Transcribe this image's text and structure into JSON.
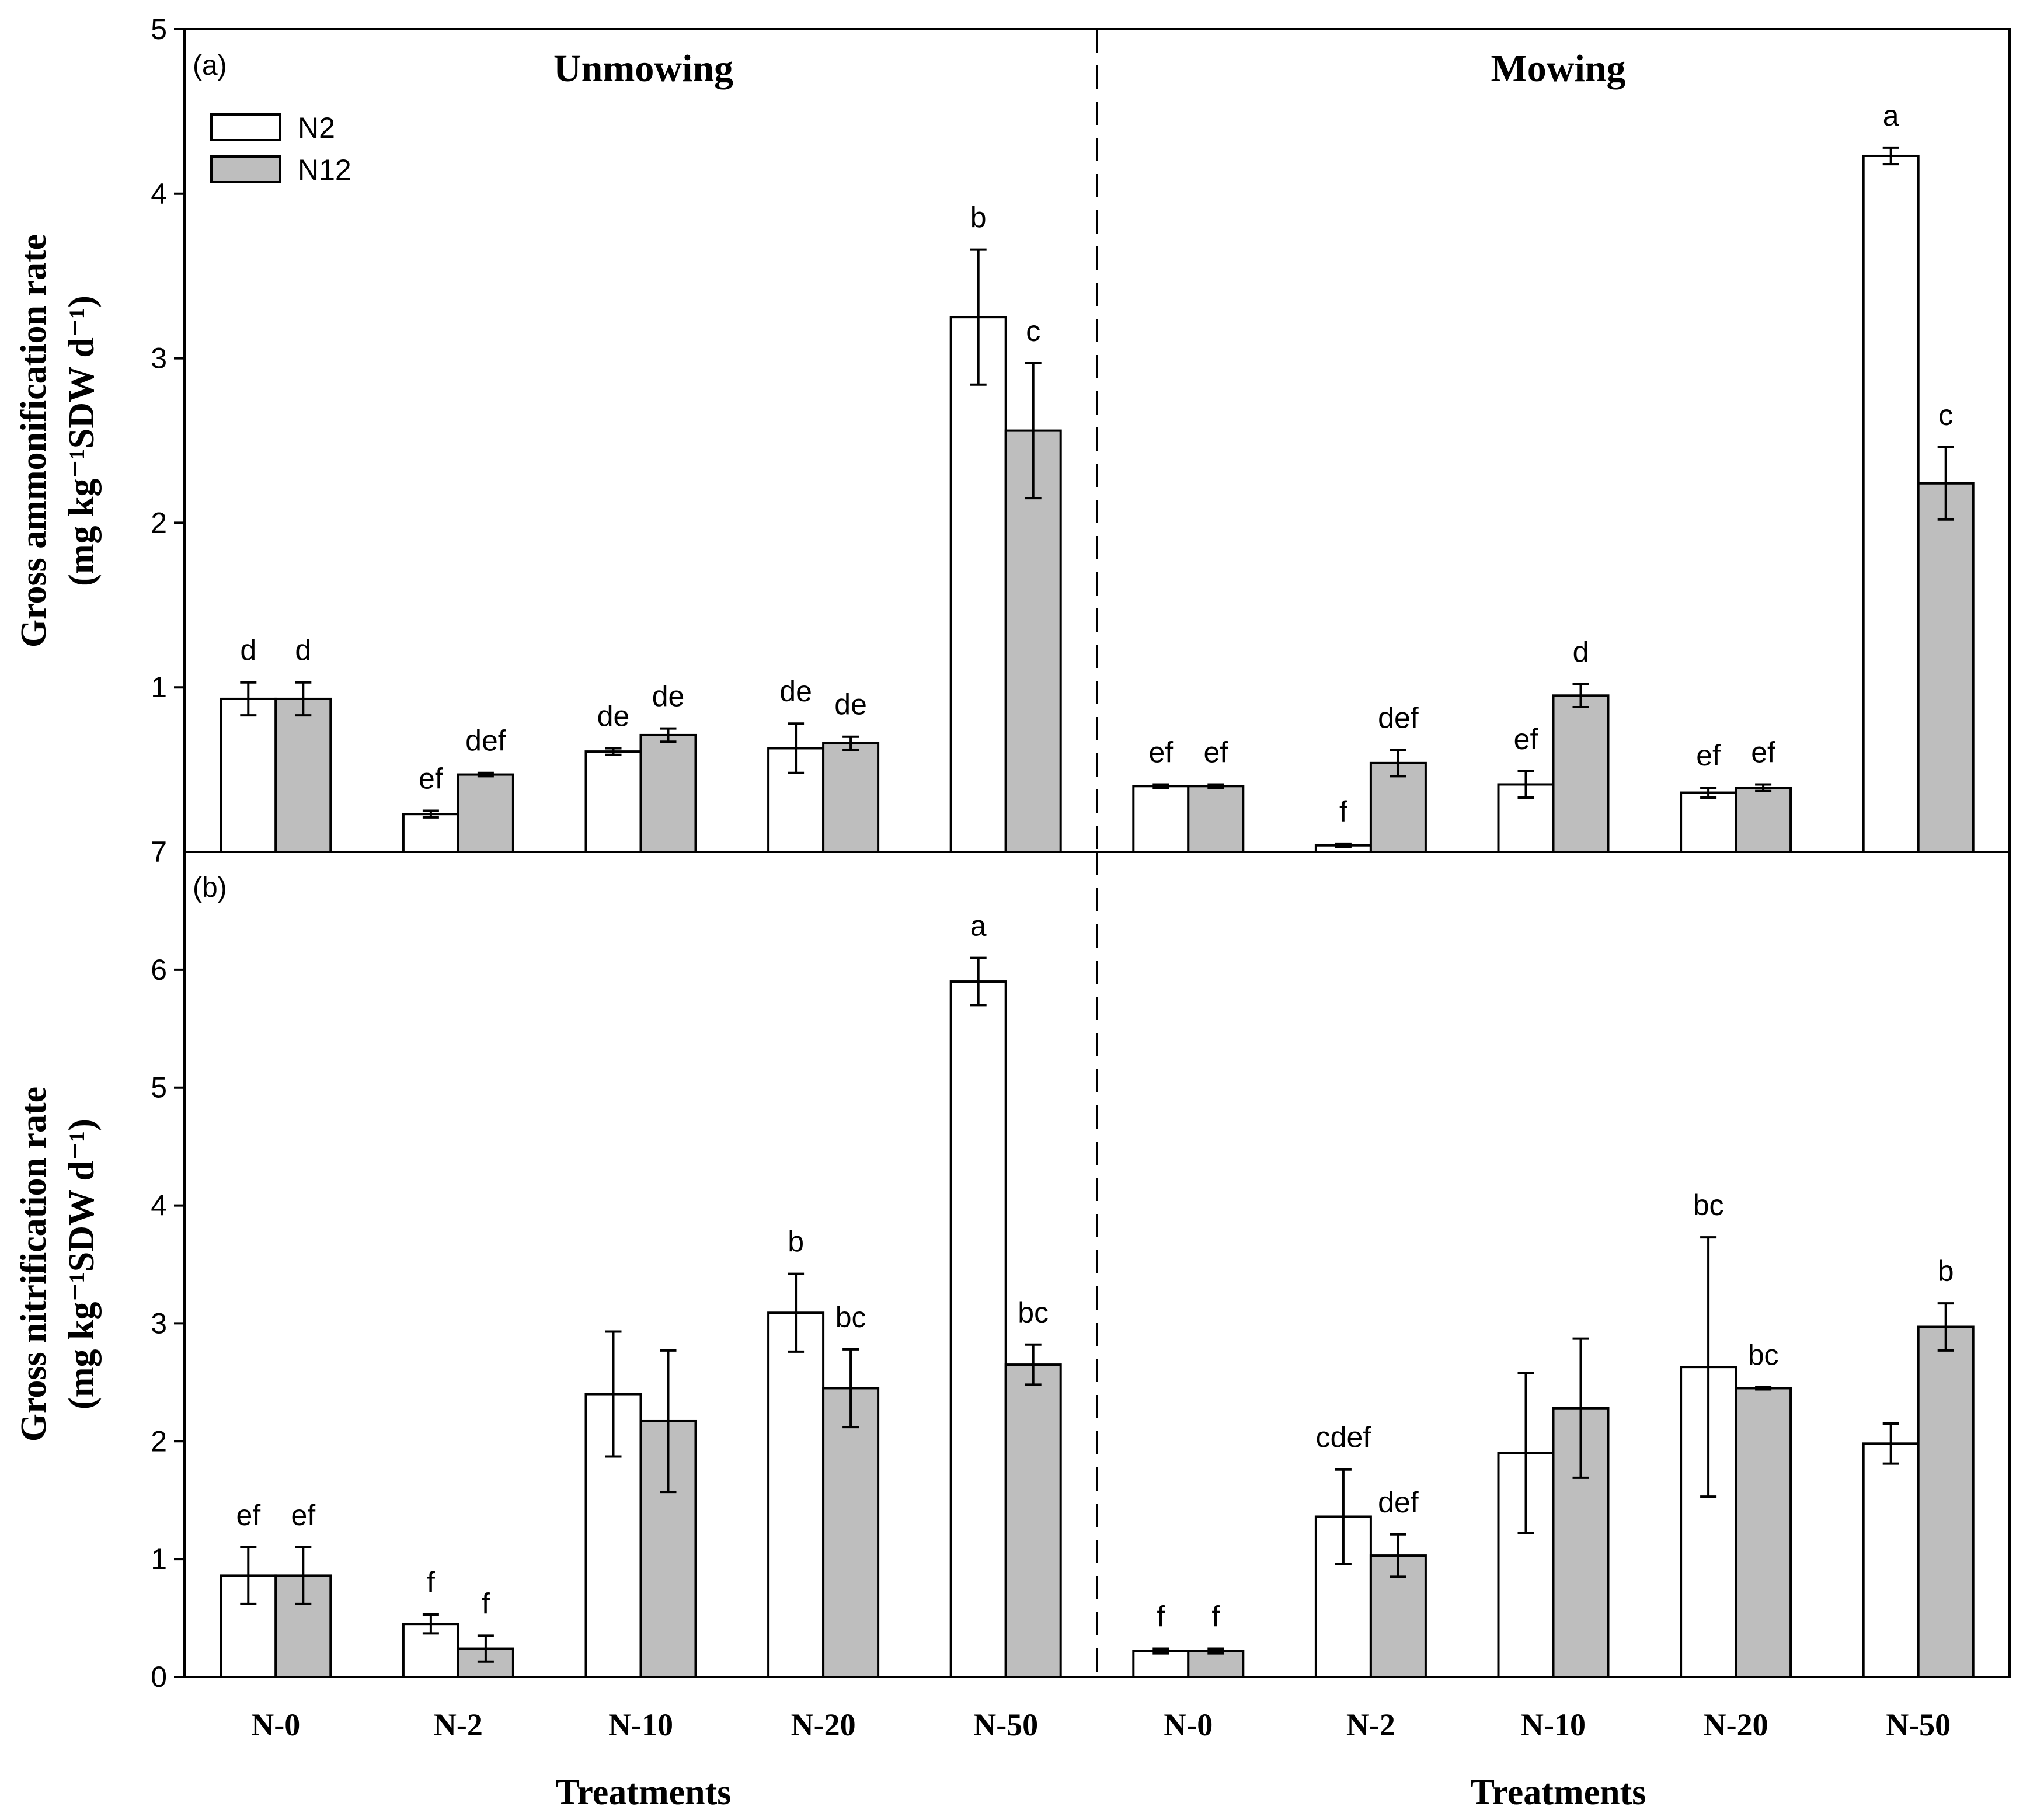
{
  "chart_data": {
    "type": "bar",
    "legend": {
      "position": "top-left",
      "entries": [
        {
          "name": "N2",
          "color": "#ffffff"
        },
        {
          "name": "N12",
          "color": "#bebebe"
        }
      ]
    },
    "groups": [
      "Unmowing",
      "Mowing"
    ],
    "categories": [
      "N-0",
      "N-2",
      "N-10",
      "N-20",
      "N-50",
      "N-0",
      "N-2",
      "N-10",
      "N-20",
      "N-50"
    ],
    "xlabels": [
      "Treatments",
      "Treatments"
    ],
    "panels": [
      {
        "id": "a",
        "label": "(a)",
        "ylabel_line1": "Gross ammonification rate",
        "ylabel_line2": "(mg kg⁻¹SDW d⁻¹)",
        "ylim": [
          0,
          5
        ],
        "yticks": [
          1,
          2,
          3,
          4,
          5
        ],
        "ytick_labels": [
          "1",
          "2",
          "3",
          "4",
          "5"
        ],
        "bottom_label": "7",
        "series": [
          {
            "name": "N2",
            "values": [
              0.93,
              0.23,
              0.61,
              0.63,
              3.25,
              0.4,
              0.04,
              0.41,
              0.36,
              4.23
            ],
            "errors": [
              0.1,
              0.02,
              0.02,
              0.15,
              0.41,
              0.01,
              0.01,
              0.08,
              0.03,
              0.05
            ],
            "letters": [
              "d",
              "ef",
              "de",
              "de",
              "b",
              "ef",
              "f",
              "ef",
              "ef",
              "a"
            ]
          },
          {
            "name": "N12",
            "values": [
              0.93,
              0.47,
              0.71,
              0.66,
              2.56,
              0.4,
              0.54,
              0.95,
              0.39,
              2.24
            ],
            "errors": [
              0.1,
              0.01,
              0.04,
              0.04,
              0.41,
              0.01,
              0.08,
              0.07,
              0.02,
              0.22
            ],
            "letters": [
              "d",
              "def",
              "de",
              "de",
              "c",
              "ef",
              "def",
              "d",
              "ef",
              "c"
            ]
          }
        ]
      },
      {
        "id": "b",
        "label": "(b)",
        "ylabel_line1": "Gross nitrification rate",
        "ylabel_line2": "(mg kg⁻¹SDW d⁻¹)",
        "ylim": [
          0,
          7
        ],
        "yticks": [
          0,
          1,
          2,
          3,
          4,
          5,
          6
        ],
        "ytick_labels": [
          "0",
          "1",
          "2",
          "3",
          "4",
          "5",
          "6"
        ],
        "series": [
          {
            "name": "N2",
            "values": [
              0.86,
              0.45,
              2.4,
              3.09,
              5.9,
              0.22,
              1.36,
              1.9,
              2.63,
              1.98
            ],
            "errors": [
              0.24,
              0.08,
              0.53,
              0.33,
              0.2,
              0.02,
              0.4,
              0.68,
              1.1,
              0.17
            ],
            "letters": [
              "ef",
              "f",
              "",
              "b",
              "a",
              "f",
              "cdef",
              "",
              "bc",
              ""
            ]
          },
          {
            "name": "N12",
            "values": [
              0.86,
              0.24,
              2.17,
              2.45,
              2.65,
              0.22,
              1.03,
              2.28,
              2.45,
              2.97
            ],
            "errors": [
              0.24,
              0.11,
              0.6,
              0.33,
              0.17,
              0.02,
              0.18,
              0.59,
              0.01,
              0.2
            ],
            "letters": [
              "ef",
              "f",
              "",
              "bc",
              "bc",
              "f",
              "def",
              "",
              "bc",
              "b"
            ]
          }
        ]
      }
    ]
  }
}
